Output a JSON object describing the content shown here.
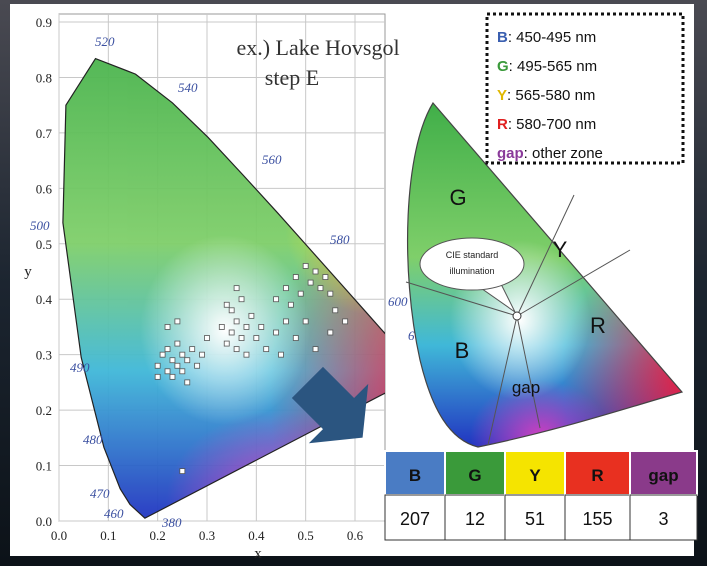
{
  "chart_data": {
    "type": "scatter",
    "title": "ex.) Lake Hovsgol",
    "subtitle": "step E",
    "x_label": "x",
    "y_label": "y",
    "x": [
      0.2,
      0.2,
      0.21,
      0.22,
      0.22,
      0.23,
      0.23,
      0.24,
      0.24,
      0.25,
      0.25,
      0.26,
      0.26,
      0.27,
      0.28,
      0.29,
      0.3,
      0.24,
      0.22,
      0.33,
      0.34,
      0.35,
      0.35,
      0.36,
      0.36,
      0.37,
      0.37,
      0.38,
      0.38,
      0.39,
      0.4,
      0.41,
      0.36,
      0.34,
      0.42,
      0.44,
      0.46,
      0.45,
      0.48,
      0.44,
      0.46,
      0.47,
      0.48,
      0.49,
      0.5,
      0.51,
      0.52,
      0.53,
      0.54,
      0.55,
      0.56,
      0.5,
      0.52,
      0.55,
      0.58,
      0.25
    ],
    "values": [
      0.28,
      0.26,
      0.3,
      0.27,
      0.31,
      0.29,
      0.26,
      0.28,
      0.32,
      0.27,
      0.3,
      0.29,
      0.25,
      0.31,
      0.28,
      0.3,
      0.33,
      0.36,
      0.35,
      0.35,
      0.32,
      0.38,
      0.34,
      0.36,
      0.31,
      0.33,
      0.4,
      0.35,
      0.3,
      0.37,
      0.33,
      0.35,
      0.42,
      0.39,
      0.31,
      0.34,
      0.36,
      0.3,
      0.33,
      0.4,
      0.42,
      0.39,
      0.44,
      0.41,
      0.46,
      0.43,
      0.45,
      0.42,
      0.44,
      0.41,
      0.38,
      0.36,
      0.31,
      0.34,
      0.36,
      0.09
    ],
    "color": "#ffffff",
    "xlim": [
      0,
      0.66
    ],
    "ylim": [
      0,
      0.9
    ],
    "xticks": [
      {
        "value": 0,
        "label": "0.0"
      },
      0.1,
      0.2,
      0.3,
      0.4,
      0.5,
      0.6
    ],
    "yticks": [
      {
        "value": 0,
        "label": "0.0"
      },
      0.1,
      0.2,
      0.3,
      0.4,
      0.5,
      0.6,
      0.7,
      0.8,
      0.9
    ],
    "grid": true,
    "annotations": [
      "520",
      "540",
      "560",
      "580",
      "600",
      "6",
      "500",
      "490",
      "480",
      "470",
      "460",
      "380"
    ]
  },
  "legend_box": {
    "items": [
      {
        "key": "B",
        "text": ": 450-495 nm",
        "color": "#3a5fb0"
      },
      {
        "key": "G",
        "text": ": 495-565 nm",
        "color": "#3a9a3a"
      },
      {
        "key": "Y",
        "text": ": 565-580 nm",
        "color": "#e0b800"
      },
      {
        "key": "R",
        "text": ": 580-700 nm",
        "color": "#e02020"
      },
      {
        "key": "gap",
        "text": ": other zone",
        "color": "#8a3a9a"
      }
    ]
  },
  "zone_diagram": {
    "labels": [
      "G",
      "Y",
      "R",
      "B",
      "gap"
    ],
    "callout": [
      "CIE standard",
      "illumination"
    ]
  },
  "table": {
    "header": [
      "B",
      "G",
      "Y",
      "R",
      "gap"
    ],
    "colors": [
      "#4a7cc4",
      "#3a9a3a",
      "#f5e400",
      "#e83020",
      "#8a3a8a"
    ],
    "rows": [
      [
        207,
        12,
        51,
        155,
        3
      ]
    ]
  }
}
